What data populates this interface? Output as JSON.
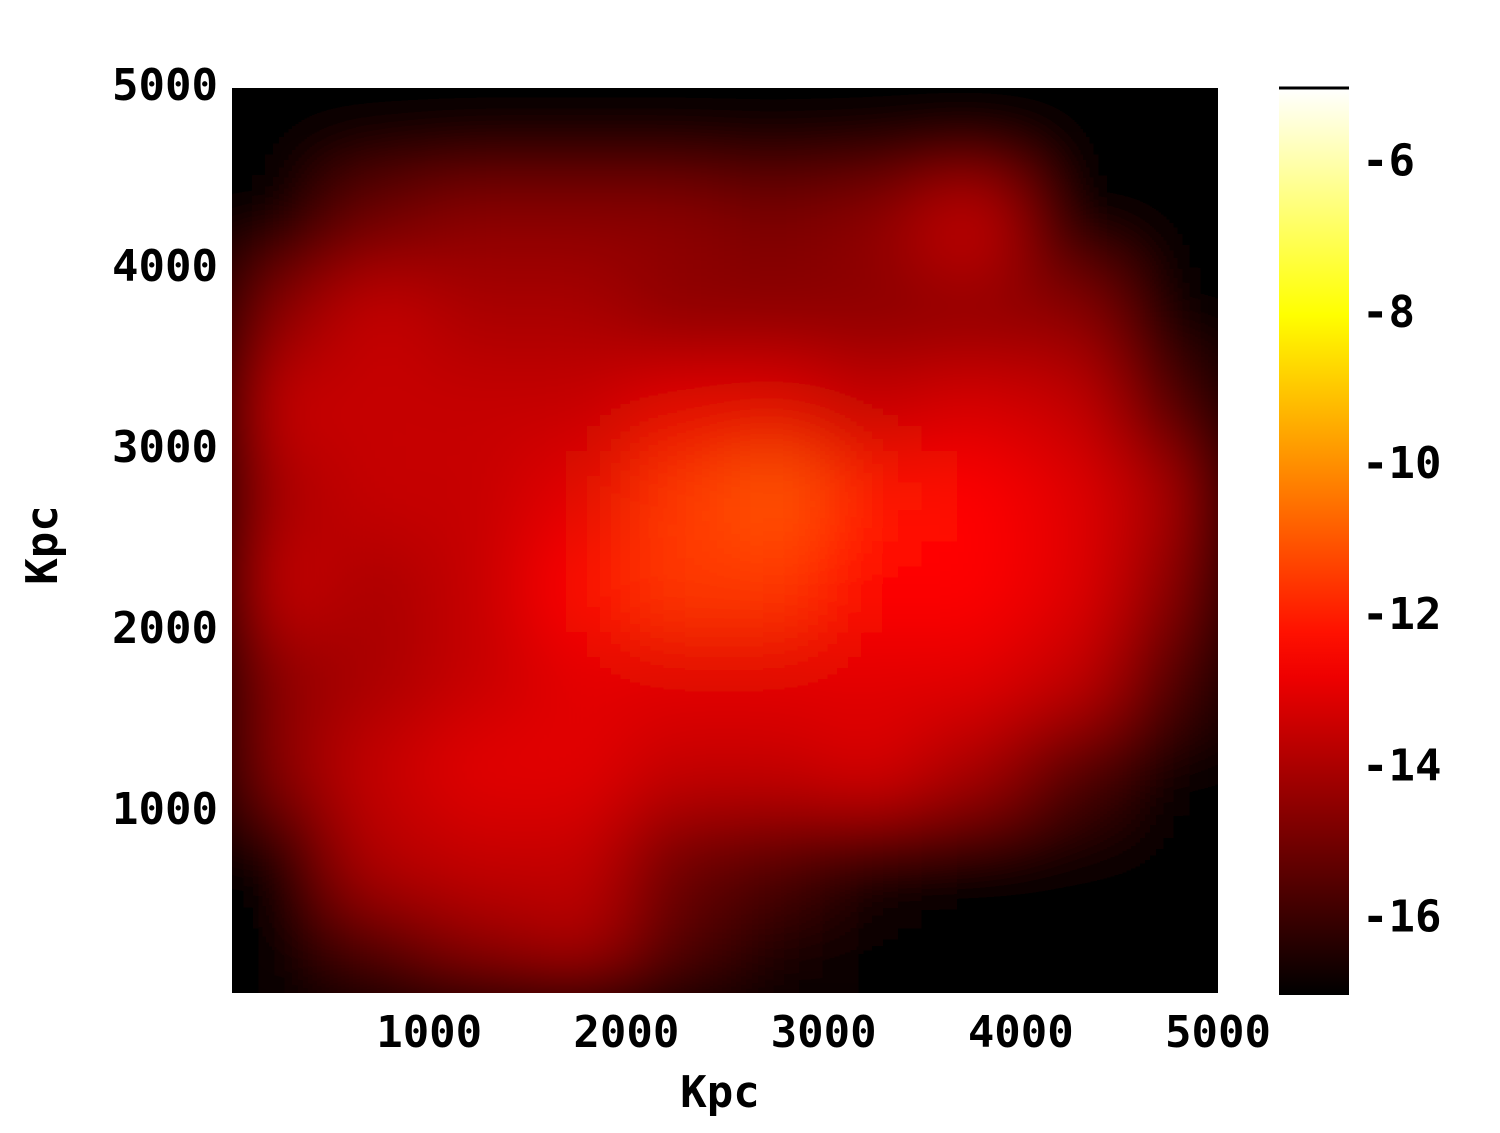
{
  "chart_data": {
    "type": "heatmap",
    "xlabel": "Kpc",
    "ylabel": "Kpc",
    "x": [
      250,
      750,
      1250,
      1750,
      2250,
      2750,
      3250,
      3750,
      4250,
      4750
    ],
    "y": [
      250,
      750,
      1250,
      1750,
      2250,
      2750,
      3250,
      3750,
      4250,
      4750
    ],
    "z": [
      [
        -17,
        -15.5,
        -14.5,
        -14,
        -15.5,
        -16.5,
        -17,
        -17,
        -17,
        -17
      ],
      [
        -17,
        -13.8,
        -13.5,
        -13.5,
        -15,
        -15.5,
        -16.5,
        -17,
        -17,
        -17
      ],
      [
        -14.5,
        -13.5,
        -13,
        -13,
        -13.5,
        -13.5,
        -13.2,
        -14,
        -15.5,
        -17
      ],
      [
        -14.5,
        -14,
        -13.5,
        -13,
        -13,
        -13,
        -13,
        -13,
        -13.5,
        -15.5
      ],
      [
        -13.5,
        -14,
        -13.5,
        -12.5,
        -11.5,
        -11.5,
        -12.5,
        -12.5,
        -13,
        -14.5
      ],
      [
        -14,
        -13.5,
        -13.5,
        -13,
        -11.5,
        -11,
        -12,
        -12.5,
        -13,
        -14
      ],
      [
        -13.5,
        -13.5,
        -13.5,
        -13.5,
        -13,
        -13,
        -13.5,
        -13.2,
        -13.5,
        -15.5
      ],
      [
        -14.5,
        -13.5,
        -14,
        -14,
        -14.5,
        -14.5,
        -14.5,
        -14.5,
        -14.5,
        -17
      ],
      [
        -17,
        -15,
        -14.5,
        -14.5,
        -14.5,
        -14.8,
        -14.5,
        -13.5,
        -17,
        -17
      ],
      [
        -17,
        -17,
        -17,
        -17,
        -17,
        -17,
        -17,
        -17,
        -17,
        -17
      ]
    ],
    "xlim": [
      0,
      5000
    ],
    "ylim": [
      0,
      5000
    ],
    "xticks": [
      1000,
      2000,
      3000,
      4000,
      5000
    ],
    "yticks": [
      1000,
      2000,
      3000,
      4000,
      5000
    ],
    "colormap": "hot",
    "zlim": [
      -17,
      -5
    ],
    "zticks": [
      -6,
      -8,
      -10,
      -12,
      -14,
      -16
    ]
  }
}
